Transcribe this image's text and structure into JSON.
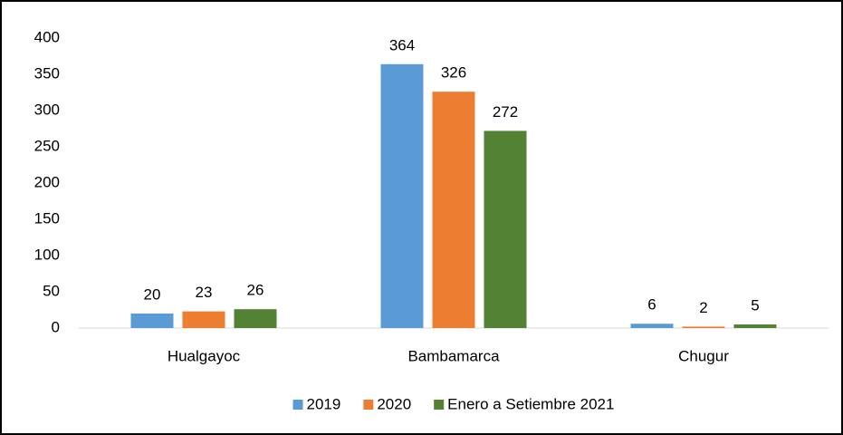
{
  "chart_data": {
    "type": "bar",
    "categories": [
      "Hualgayoc",
      "Bambamarca",
      "Chugur"
    ],
    "series": [
      {
        "name": "2019",
        "color": "#5b9bd5",
        "values": [
          20,
          364,
          6
        ]
      },
      {
        "name": "2020",
        "color": "#ed7d31",
        "values": [
          23,
          326,
          2
        ]
      },
      {
        "name": "Enero a Setiembre 2021",
        "color": "#548235",
        "values": [
          26,
          272,
          5
        ]
      }
    ],
    "ylim": [
      0,
      400
    ],
    "yticks": [
      0,
      50,
      100,
      150,
      200,
      250,
      300,
      350,
      400
    ],
    "grid": false,
    "legend": "bottom"
  }
}
